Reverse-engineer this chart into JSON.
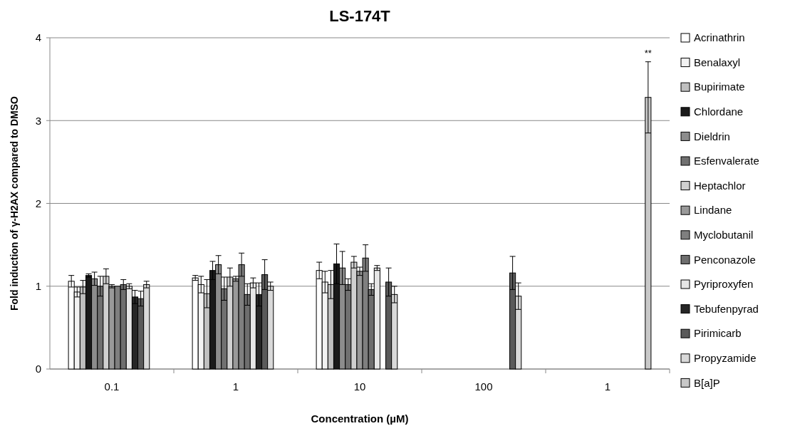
{
  "chart_data": {
    "type": "bar",
    "title": "LS-174T",
    "xlabel": "Concentration (µM)",
    "ylabel": "Fold induction of γ-H2AX compared to DMSO",
    "categories": [
      "0.1",
      "1",
      "10",
      "100",
      "1"
    ],
    "ylim": [
      0,
      4
    ],
    "yticks": [
      0,
      1,
      2,
      3,
      4
    ],
    "grid": "y",
    "legend": "right",
    "annotations": [
      "**"
    ],
    "series": [
      {
        "name": "Acrinathrin",
        "color": "#ffffff",
        "values": [
          1.06,
          1.1,
          1.19,
          null,
          null
        ],
        "errors": [
          0.07,
          0.03,
          0.1,
          null,
          null
        ]
      },
      {
        "name": "Benalaxyl",
        "color": "#f2f2f2",
        "values": [
          0.93,
          1.02,
          1.05,
          null,
          null
        ],
        "errors": [
          0.06,
          0.1,
          0.13,
          null,
          null
        ]
      },
      {
        "name": "Bupirimate",
        "color": "#bfbfbf",
        "values": [
          0.99,
          0.91,
          1.02,
          null,
          null
        ],
        "errors": [
          0.08,
          0.17,
          0.17,
          null,
          null
        ]
      },
      {
        "name": "Chlordane",
        "color": "#1a1a1a",
        "values": [
          1.13,
          1.19,
          1.27,
          null,
          null
        ],
        "errors": [
          0.02,
          0.11,
          0.24,
          null,
          null
        ]
      },
      {
        "name": "Dieldrin",
        "color": "#8c8c8c",
        "values": [
          1.09,
          1.26,
          1.22,
          null,
          null
        ],
        "errors": [
          0.08,
          0.11,
          0.2,
          null,
          null
        ]
      },
      {
        "name": "Esfenvalerate",
        "color": "#707070",
        "values": [
          1.0,
          0.97,
          1.02,
          null,
          null
        ],
        "errors": [
          0.12,
          0.14,
          0.07,
          null,
          null
        ]
      },
      {
        "name": "Heptachlor",
        "color": "#d0d0d0",
        "values": [
          1.12,
          1.11,
          1.29,
          null,
          null
        ],
        "errors": [
          0.09,
          0.11,
          0.07,
          null,
          null
        ]
      },
      {
        "name": "Lindane",
        "color": "#999999",
        "values": [
          1.0,
          1.09,
          1.18,
          null,
          null
        ],
        "errors": [
          0.02,
          0.03,
          0.05,
          null,
          null
        ]
      },
      {
        "name": "Myclobutanil",
        "color": "#7f7f7f",
        "values": [
          1.0,
          1.26,
          1.34,
          null,
          null
        ],
        "errors": [
          null,
          0.14,
          0.16,
          null,
          null
        ]
      },
      {
        "name": "Penconazole",
        "color": "#6e6e6e",
        "values": [
          1.02,
          0.9,
          0.96,
          null,
          null
        ],
        "errors": [
          0.06,
          0.13,
          0.07,
          null,
          null
        ]
      },
      {
        "name": "Pyriproxyfen",
        "color": "#e6e6e6",
        "values": [
          1.0,
          1.04,
          1.22,
          null,
          null
        ],
        "errors": [
          0.03,
          0.06,
          0.03,
          null,
          null
        ]
      },
      {
        "name": "Tebufenpyrad",
        "color": "#262626",
        "values": [
          0.87,
          0.9,
          null,
          null,
          null
        ],
        "errors": [
          0.08,
          0.14,
          null,
          null,
          null
        ]
      },
      {
        "name": "Pirimicarb",
        "color": "#5a5a5a",
        "values": [
          0.85,
          1.14,
          1.05,
          1.16,
          null
        ],
        "errors": [
          0.09,
          0.18,
          0.17,
          0.2,
          null
        ]
      },
      {
        "name": "Propyzamide",
        "color": "#d9d9d9",
        "values": [
          1.02,
          1.0,
          0.9,
          0.88,
          null
        ],
        "errors": [
          0.04,
          0.05,
          0.1,
          0.16,
          null
        ]
      },
      {
        "name": "B[a]P",
        "color": "#c8c8c8",
        "values": [
          null,
          null,
          null,
          null,
          3.28
        ],
        "errors": [
          null,
          null,
          null,
          null,
          0.43
        ]
      }
    ]
  }
}
